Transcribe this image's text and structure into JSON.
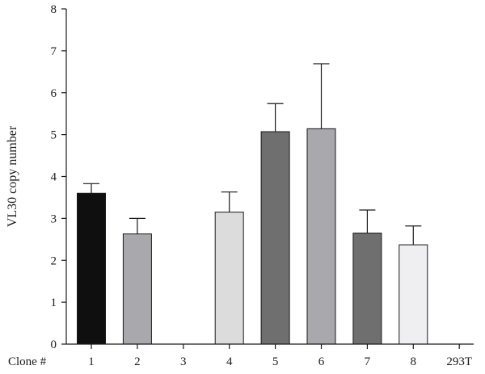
{
  "chart_data": {
    "type": "bar",
    "title": "",
    "xlabel": "",
    "x_prefix_label": "Clone #",
    "ylabel": "VL30 copy number",
    "ylim": [
      0,
      8
    ],
    "yticks": [
      0,
      1,
      2,
      3,
      4,
      5,
      6,
      7,
      8
    ],
    "categories": [
      "1",
      "2",
      "3",
      "4",
      "5",
      "6",
      "7",
      "8",
      "293T"
    ],
    "values": [
      3.6,
      2.63,
      0,
      3.15,
      5.07,
      5.14,
      2.65,
      2.37,
      0
    ],
    "error_upper": [
      0.23,
      0.37,
      0,
      0.48,
      0.67,
      1.55,
      0.55,
      0.45,
      0
    ],
    "bar_colors": [
      "#0f0f0f",
      "#a8a8ad",
      "#a8a8ad",
      "#dcdcdc",
      "#6f6f6f",
      "#a8a8ad",
      "#6f6f6f",
      "#efeff2",
      "#efeff2"
    ],
    "grid": false,
    "legend": "none"
  }
}
